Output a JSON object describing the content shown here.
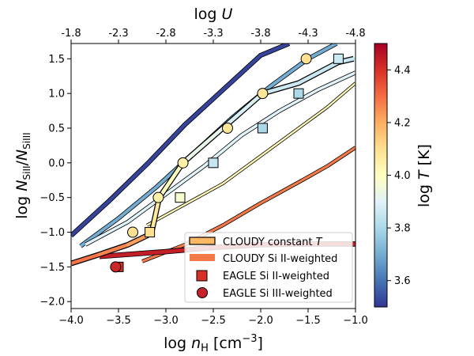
{
  "chart_data": {
    "type": "line",
    "xlabel": {
      "base": "log ",
      "sym": "n",
      "sub": "H",
      "unit": " [cm",
      "sup": "−3",
      "close": "]"
    },
    "ylabel": {
      "base": "log ",
      "sym1": "N",
      "sub1": "SiII",
      "slash": "/",
      "sym2": "N",
      "sub2": "SiIII"
    },
    "top_xlabel": {
      "base": "log ",
      "sym": "U"
    },
    "colorbar_label": {
      "base": "log ",
      "sym": "T",
      "unit": " [K]"
    },
    "xlim": [
      -4.0,
      -1.0
    ],
    "ylim": [
      -2.1,
      1.72
    ],
    "x_ticks": [
      -4.0,
      -3.5,
      -3.0,
      -2.5,
      -2.0,
      -1.5,
      -1.0
    ],
    "x_tick_labels": [
      "−4.0",
      "−3.5",
      "−3.0",
      "−2.5",
      "−2.0",
      "−1.5",
      "−1.0"
    ],
    "y_ticks": [
      1.5,
      1.0,
      0.5,
      0.0,
      -0.5,
      -1.0,
      -1.5,
      -2.0
    ],
    "y_tick_labels": [
      "1.5",
      "1.0",
      "0.5",
      "0.0",
      "−0.5",
      "−1.0",
      "−1.5",
      "−2.0"
    ],
    "top_ticks": [
      "-1.8",
      "-2.3",
      "-2.8",
      "-3.3",
      "-3.8",
      "-4.3",
      "-4.8"
    ],
    "colorbar": {
      "range": [
        3.5,
        4.5
      ],
      "ticks": [
        3.6,
        3.8,
        4.0,
        4.2,
        4.4
      ],
      "tick_labels": [
        "3.6",
        "3.8",
        "4.0",
        "4.2",
        "4.4"
      ],
      "stops": [
        "#313695",
        "#4575b4",
        "#74add1",
        "#abd9e9",
        "#e0f3f8",
        "#ffffbf",
        "#fee090",
        "#fdae61",
        "#f46d43",
        "#d73027",
        "#a50026"
      ]
    },
    "cloudy_constant_T": [
      {
        "logT": 3.52,
        "x": [
          -4.0,
          -3.6,
          -3.2,
          -2.8,
          -2.4,
          -2.0,
          -1.7
        ],
        "y": [
          -1.05,
          -0.55,
          -0.02,
          0.55,
          1.05,
          1.55,
          1.72
        ]
      },
      {
        "logT": 3.7,
        "x": [
          -3.9,
          -3.5,
          -3.1,
          -2.7,
          -2.3,
          -1.9,
          -1.5,
          -1.2
        ],
        "y": [
          -1.2,
          -0.8,
          -0.35,
          0.15,
          0.65,
          1.1,
          1.5,
          1.72
        ]
      },
      {
        "logT": 3.9,
        "x": [
          -3.85,
          -3.4,
          -3.0,
          -2.6,
          -2.2,
          -1.8,
          -1.4,
          -1.0
        ],
        "y": [
          -1.18,
          -0.85,
          -0.45,
          -0.05,
          0.4,
          0.75,
          1.05,
          1.3
        ]
      },
      {
        "logT": 4.02,
        "x": [
          -3.2,
          -2.8,
          -2.4,
          -2.0,
          -1.6,
          -1.3,
          -1.0
        ],
        "y": [
          -0.9,
          -0.6,
          -0.3,
          0.1,
          0.5,
          0.8,
          1.15
        ]
      },
      {
        "logT": 4.28,
        "x": [
          -3.25,
          -2.8,
          -2.4,
          -2.0,
          -1.6,
          -1.3,
          -1.0
        ],
        "y": [
          -1.42,
          -1.18,
          -0.9,
          -0.58,
          -0.28,
          -0.05,
          0.22
        ]
      },
      {
        "logT": 4.44,
        "x": [
          -3.7,
          -3.0,
          -2.5,
          -2.0,
          -1.5,
          -1.0
        ],
        "y": [
          -1.35,
          -1.28,
          -1.22,
          -1.18,
          -1.17,
          -1.17
        ]
      }
    ],
    "cloudy_si2_weighted": {
      "x": [
        -4.0,
        -3.7,
        -3.4,
        -3.2,
        -3.15,
        -3.07,
        -2.82,
        -2.4,
        -1.98,
        -1.6,
        -1.18,
        -1.02
      ],
      "y": [
        -1.45,
        -1.32,
        -1.18,
        -1.05,
        -1.0,
        -0.5,
        0.0,
        0.5,
        1.0,
        1.15,
        1.45,
        1.5
      ],
      "logT": [
        4.3,
        4.28,
        4.25,
        4.2,
        4.1,
        4.05,
        3.95,
        3.9,
        3.87,
        3.86,
        3.85,
        3.85
      ]
    },
    "eagle_si2_weighted": {
      "x": [
        -3.5,
        -3.17,
        -2.85,
        -2.5,
        -1.98,
        -1.6,
        -1.18
      ],
      "y": [
        -1.5,
        -1.0,
        -0.5,
        0.0,
        0.5,
        1.0,
        1.5
      ],
      "logT": [
        4.4,
        4.1,
        3.97,
        3.85,
        3.8,
        3.8,
        3.86
      ]
    },
    "eagle_si3_weighted": {
      "x": [
        -3.53,
        -3.35,
        -3.08,
        -2.82,
        -2.35,
        -1.98,
        -1.52
      ],
      "y": [
        -1.5,
        -1.0,
        -0.5,
        0.0,
        0.5,
        1.0,
        1.5
      ],
      "logT": [
        4.42,
        4.1,
        4.05,
        4.05,
        4.08,
        4.08,
        4.1
      ]
    },
    "legend": {
      "position": "lower-right",
      "entries": [
        "CLOUDY constant ",
        "CLOUDY Si II-weighted",
        "EAGLE Si II-weighted",
        "EAGLE Si III-weighted"
      ],
      "entry0_sym": "T"
    }
  }
}
